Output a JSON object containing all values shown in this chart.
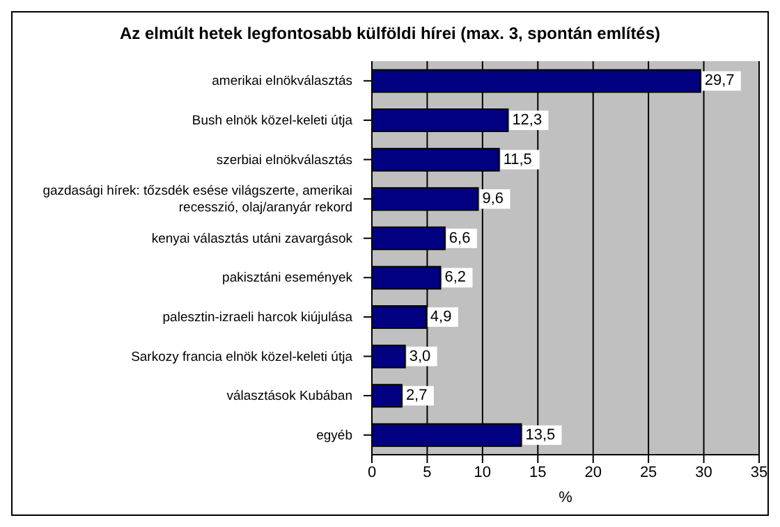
{
  "chart_data": {
    "type": "bar",
    "orientation": "horizontal",
    "title": "Az elmúlt hetek legfontosabb külföldi hírei (max. 3, spontán említés)",
    "xlabel": "%",
    "categories": [
      "amerikai elnökválasztás",
      "Bush elnök közel-keleti útja",
      "szerbiai elnökválasztás",
      "gazdasági hírek: tőzsdék esése világszerte, amerikai recesszió, olaj/aranyár rekord",
      "kenyai választás utáni zavargások",
      "pakisztáni események",
      "palesztin-izraeli harcok kiújulása",
      "Sarkozy francia elnök közel-keleti útja",
      "választások Kubában",
      "egyéb"
    ],
    "values": [
      29.7,
      12.3,
      11.5,
      9.6,
      6.6,
      6.2,
      4.9,
      3.0,
      2.7,
      13.5
    ],
    "value_labels": [
      "29,7",
      "12,3",
      "11,5",
      "9,6",
      "6,6",
      "6,2",
      "4,9",
      "3,0",
      "2,7",
      "13,5"
    ],
    "color": "#000080",
    "xlim": [
      0,
      35
    ],
    "xticks": [
      0,
      5,
      10,
      15,
      20,
      25,
      30,
      35
    ],
    "grid": "x"
  }
}
